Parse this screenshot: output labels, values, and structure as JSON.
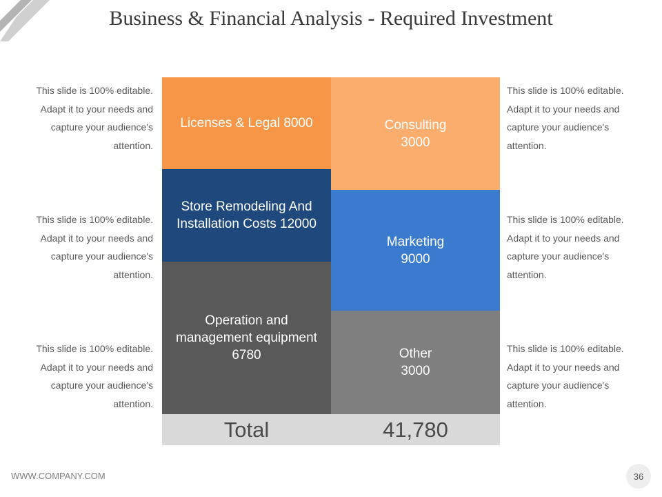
{
  "title": "Business & Financial Analysis - Required Investment",
  "description_text": "This slide is 100% editable. Adapt it to your needs and  capture your audience's attention.",
  "left_blocks": [
    {
      "label": "Licenses & Legal 8000",
      "value": 8000,
      "color": "#f79646"
    },
    {
      "label": "Store Remodeling And Installation Costs 12000",
      "value": 12000,
      "color": "#1f497d"
    },
    {
      "label": "Operation and management equipment 6780",
      "value": 6780,
      "color": "#595959"
    }
  ],
  "right_blocks": [
    {
      "label": "Consulting 3000",
      "value": 3000,
      "color": "#fbad6d"
    },
    {
      "label": "Marketing 9000",
      "value": 9000,
      "color": "#3a7bd0"
    },
    {
      "label": "Other 3000",
      "value": 3000,
      "color": "#7f7f7f"
    }
  ],
  "total": {
    "label": "Total",
    "value": "41,780"
  },
  "footer": {
    "url": "WWW.COMPANY.COM",
    "page": "36"
  }
}
